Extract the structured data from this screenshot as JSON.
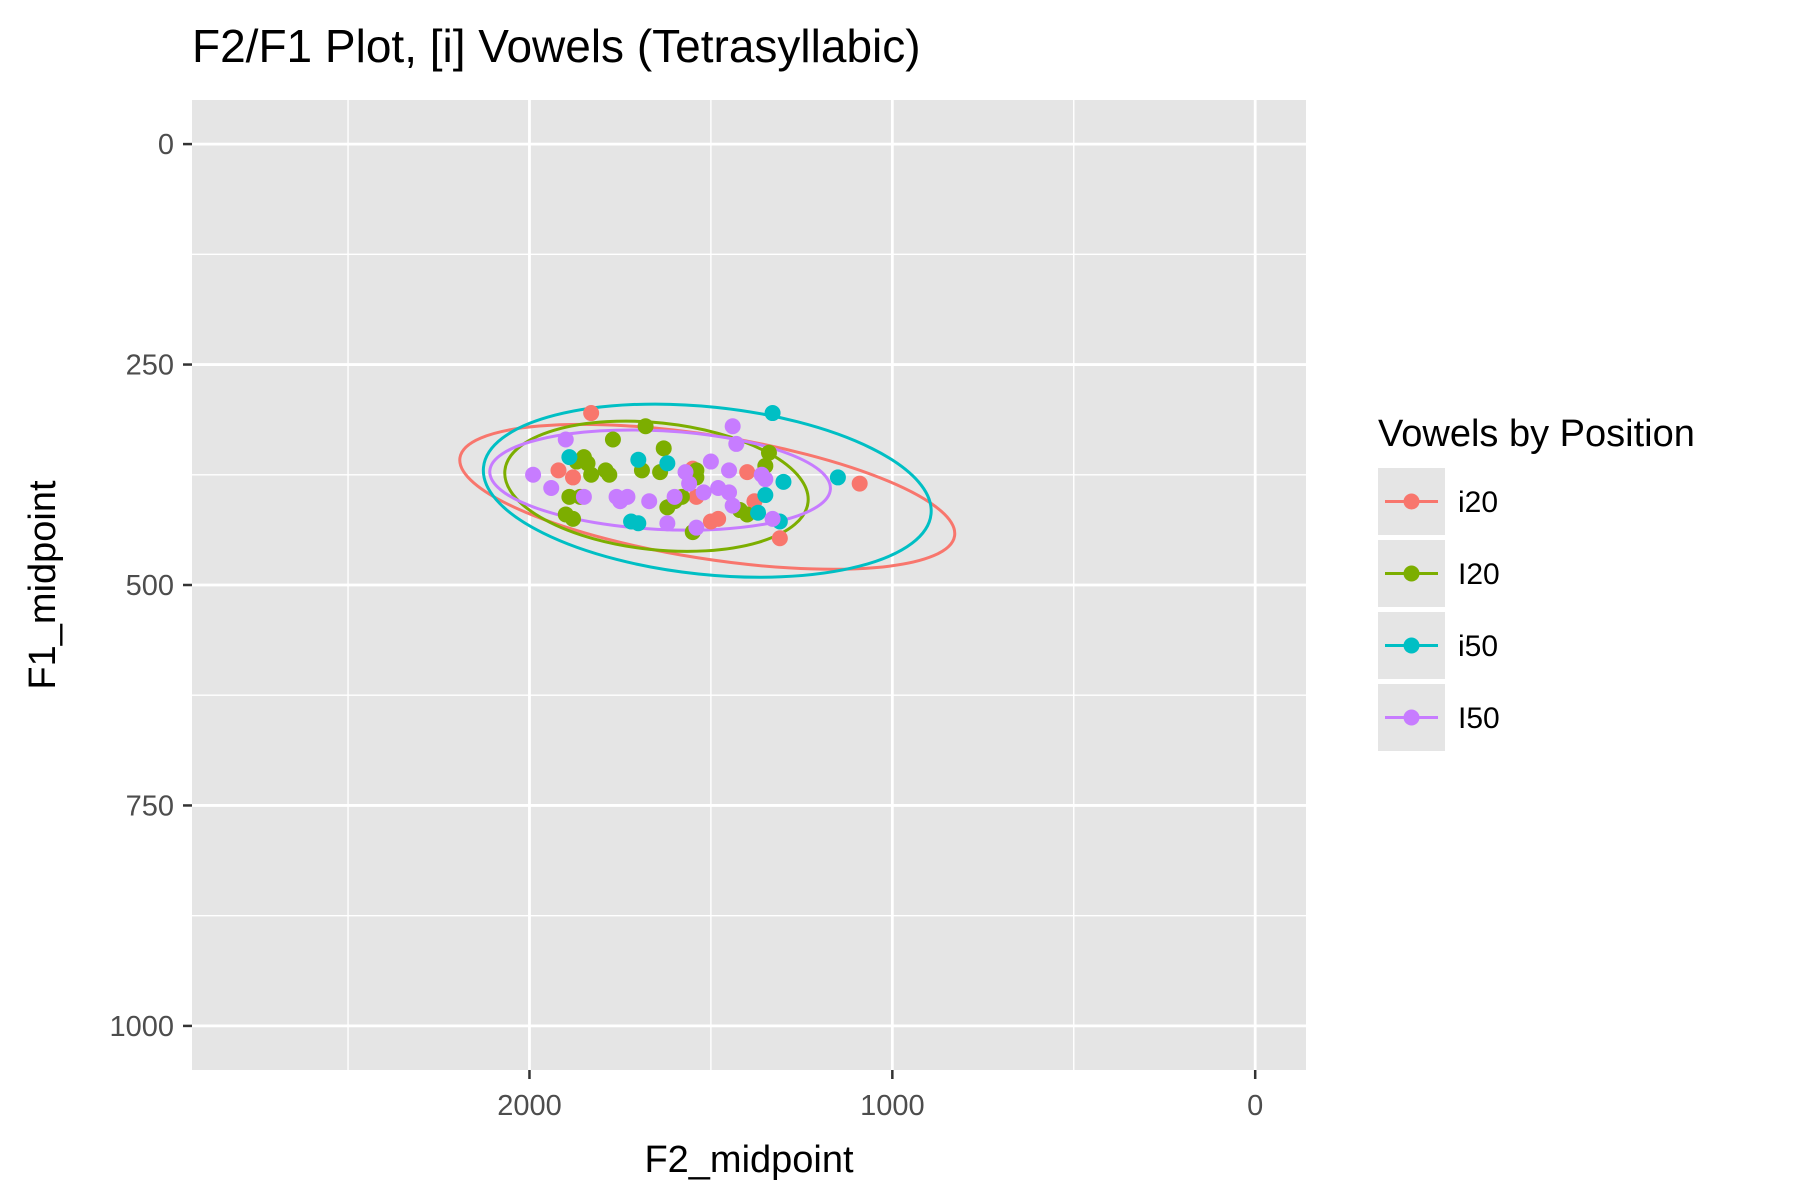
{
  "chart_data": {
    "type": "scatter",
    "title": "F2/F1 Plot, [i] Vowels (Tetrasyllabic)",
    "xlabel": "F2_midpoint",
    "ylabel": "F1_midpoint",
    "x_reversed": true,
    "y_reversed": true,
    "xlim": [
      2930,
      -140
    ],
    "ylim": [
      1050,
      -50
    ],
    "x_ticks": [
      2000,
      1000,
      0
    ],
    "x_tick_labels": [
      "2000",
      "1000",
      "0"
    ],
    "y_ticks": [
      0,
      250,
      500,
      750,
      1000
    ],
    "y_tick_labels": [
      "0",
      "250",
      "500",
      "750",
      "1000"
    ],
    "grid": true,
    "legend": {
      "title": "Vowels by Position",
      "position": "right"
    },
    "colors": {
      "panel": "#e5e5e5",
      "grid": "#ffffff",
      "tick": "#333333"
    },
    "series": [
      {
        "name": "i20",
        "color": "#F8766D",
        "x": [
          1830,
          1920,
          1880,
          1550,
          1540,
          1400,
          1380,
          1500,
          1480,
          1310,
          1090
        ],
        "y": [
          305,
          370,
          378,
          368,
          400,
          372,
          405,
          428,
          425,
          447,
          385
        ],
        "ellipse": {
          "cx": 1510,
          "cy": 400,
          "rx": 690,
          "ry": 70,
          "angle_deg": 9
        }
      },
      {
        "name": "I20",
        "color": "#7CAE00",
        "x": [
          1850,
          1840,
          1830,
          1900,
          1880,
          1860,
          1790,
          1770,
          1680,
          1630,
          1690,
          1640,
          1600,
          1580,
          1620,
          1550,
          1540,
          1340,
          1350,
          1400,
          1420,
          1550,
          1890,
          1780,
          1540,
          1870
        ],
        "y": [
          355,
          362,
          375,
          420,
          425,
          400,
          370,
          335,
          320,
          345,
          370,
          372,
          405,
          400,
          412,
          375,
          370,
          350,
          365,
          420,
          415,
          440,
          400,
          375,
          378,
          360
        ],
        "ellipse": {
          "cx": 1650,
          "cy": 388,
          "rx": 420,
          "ry": 72,
          "angle_deg": 6
        }
      },
      {
        "name": "i50",
        "color": "#00BFC4",
        "x": [
          1890,
          1700,
          1620,
          1700,
          1330,
          1350,
          1300,
          1370,
          1720,
          1150,
          1310
        ],
        "y": [
          355,
          358,
          362,
          430,
          305,
          398,
          383,
          418,
          428,
          378,
          428
        ],
        "ellipse": {
          "cx": 1510,
          "cy": 393,
          "rx": 620,
          "ry": 95,
          "angle_deg": 6
        }
      },
      {
        "name": "I50",
        "color": "#C77CFF",
        "x": [
          1990,
          1940,
          1900,
          1850,
          1750,
          1730,
          1670,
          1620,
          1600,
          1570,
          1540,
          1500,
          1480,
          1450,
          1450,
          1440,
          1430,
          1440,
          1360,
          1350,
          1330,
          1760,
          1560,
          1520
        ],
        "y": [
          375,
          390,
          335,
          400,
          405,
          400,
          405,
          430,
          400,
          372,
          435,
          360,
          390,
          395,
          370,
          320,
          340,
          410,
          375,
          380,
          425,
          400,
          385,
          395
        ],
        "ellipse": {
          "cx": 1640,
          "cy": 381,
          "rx": 470,
          "ry": 56,
          "angle_deg": 3
        }
      }
    ]
  }
}
